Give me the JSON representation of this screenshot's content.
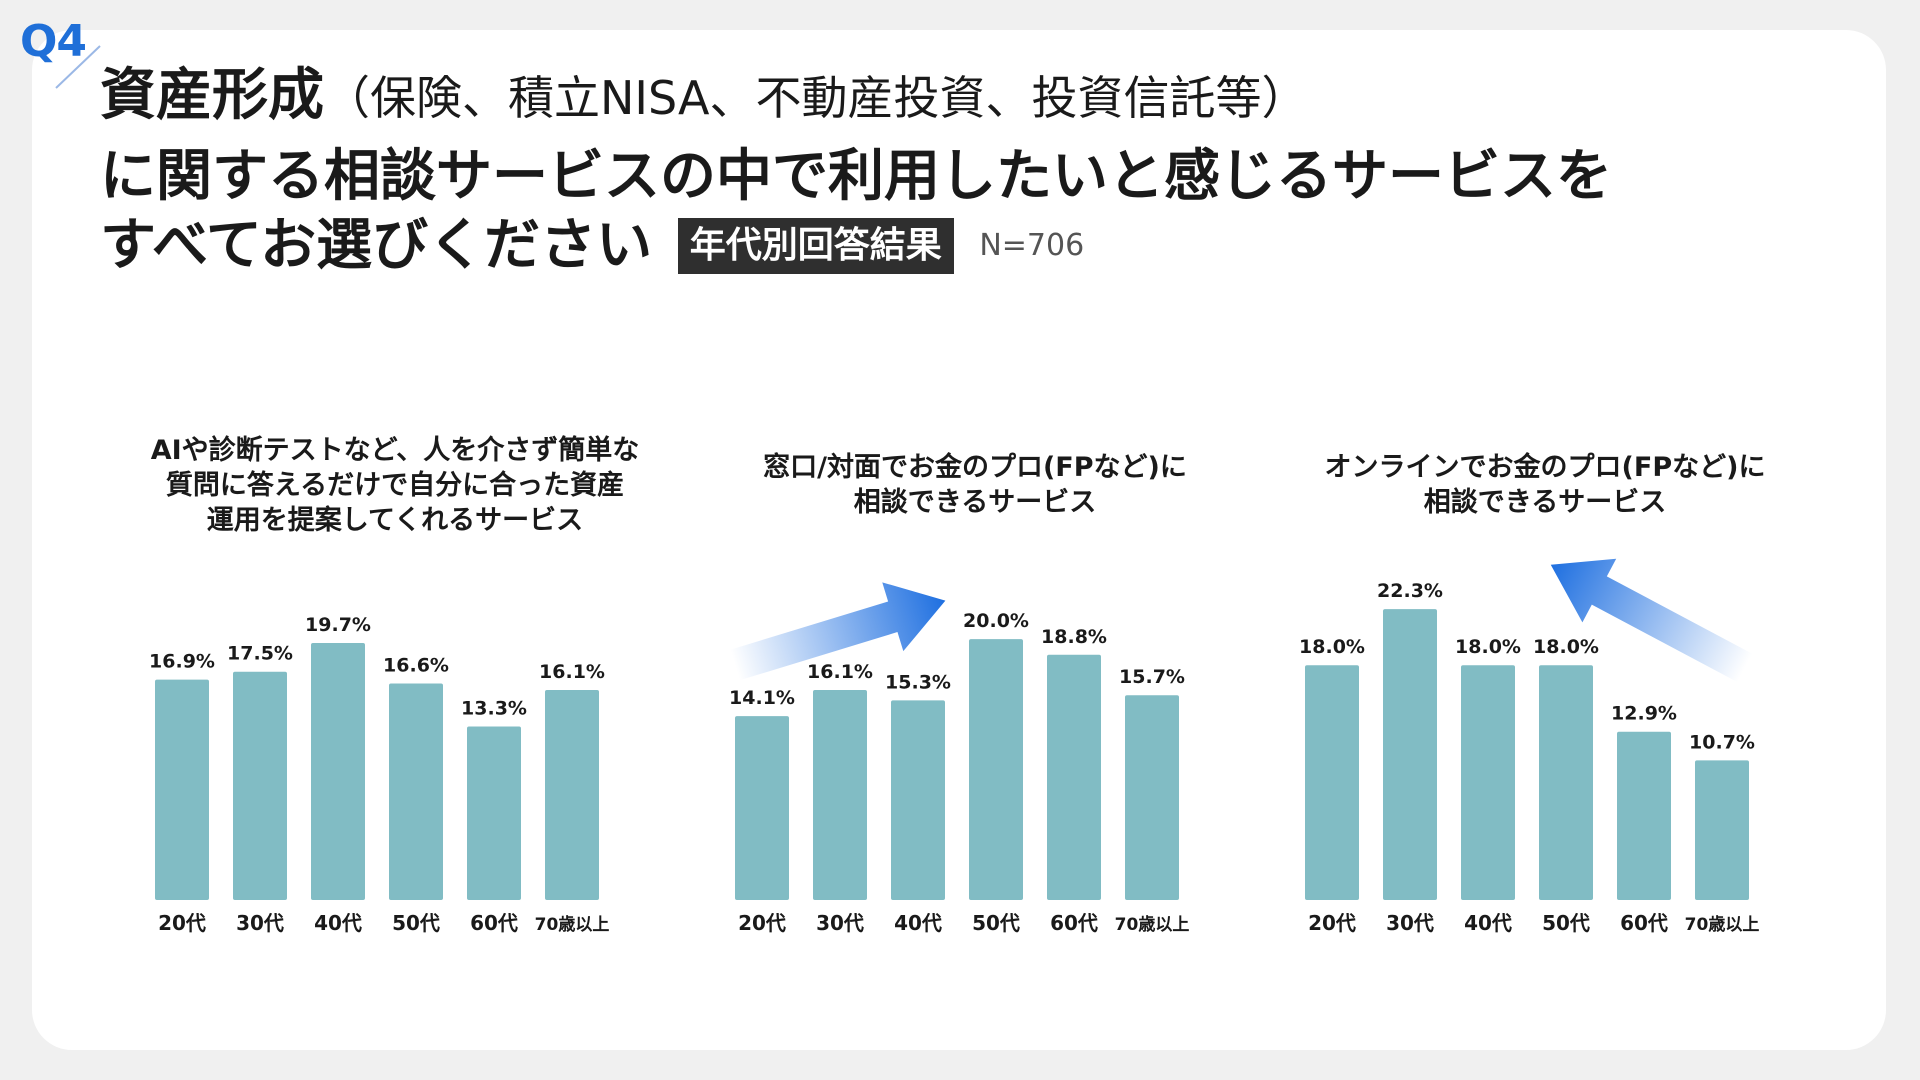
{
  "question_label": "Q4",
  "title": {
    "main_bold": "資産形成",
    "paren": "（保険、積立NISA、不動産投資、投資信託等）",
    "line2": "に関する相談サービスの中で利用したいと感じるサービスを",
    "line3": "すべてお選びください",
    "badge": "年代別回答結果",
    "n": "N=706"
  },
  "accent_colors": {
    "bar": "#81bcc4",
    "arrow": "#1e6fe0",
    "question": "#1f6fd8"
  },
  "chart_data": [
    {
      "type": "bar",
      "title": "AIや診断テストなど、人を介さず簡単な\n質問に答えるだけで自分に合った資産\n運用を提案してくれるサービス",
      "categories": [
        "20代",
        "30代",
        "40代",
        "50代",
        "60代",
        "70歳以上"
      ],
      "values": [
        16.9,
        17.5,
        19.7,
        16.6,
        13.3,
        16.1
      ],
      "value_labels": [
        "16.9%",
        "17.5%",
        "19.7%",
        "16.6%",
        "13.3%",
        "16.1%"
      ],
      "ylim": [
        0,
        23
      ],
      "grid": false,
      "arrow": "none"
    },
    {
      "type": "bar",
      "title": "窓口/対面でお金のプロ(FPなど)に\n相談できるサービス",
      "categories": [
        "20代",
        "30代",
        "40代",
        "50代",
        "60代",
        "70歳以上"
      ],
      "values": [
        14.1,
        16.1,
        15.3,
        20.0,
        18.8,
        15.7
      ],
      "value_labels": [
        "14.1%",
        "16.1%",
        "15.3%",
        "20.0%",
        "18.8%",
        "15.7%"
      ],
      "ylim": [
        0,
        23
      ],
      "grid": false,
      "arrow": "up-right"
    },
    {
      "type": "bar",
      "title": "オンラインでお金のプロ(FPなど)に\n相談できるサービス",
      "categories": [
        "20代",
        "30代",
        "40代",
        "50代",
        "60代",
        "70歳以上"
      ],
      "values": [
        18.0,
        22.3,
        18.0,
        18.0,
        12.9,
        10.7
      ],
      "value_labels": [
        "18.0%",
        "22.3%",
        "18.0%",
        "18.0%",
        "12.9%",
        "10.7%"
      ],
      "ylim": [
        0,
        23
      ],
      "grid": false,
      "arrow": "up-left"
    }
  ]
}
